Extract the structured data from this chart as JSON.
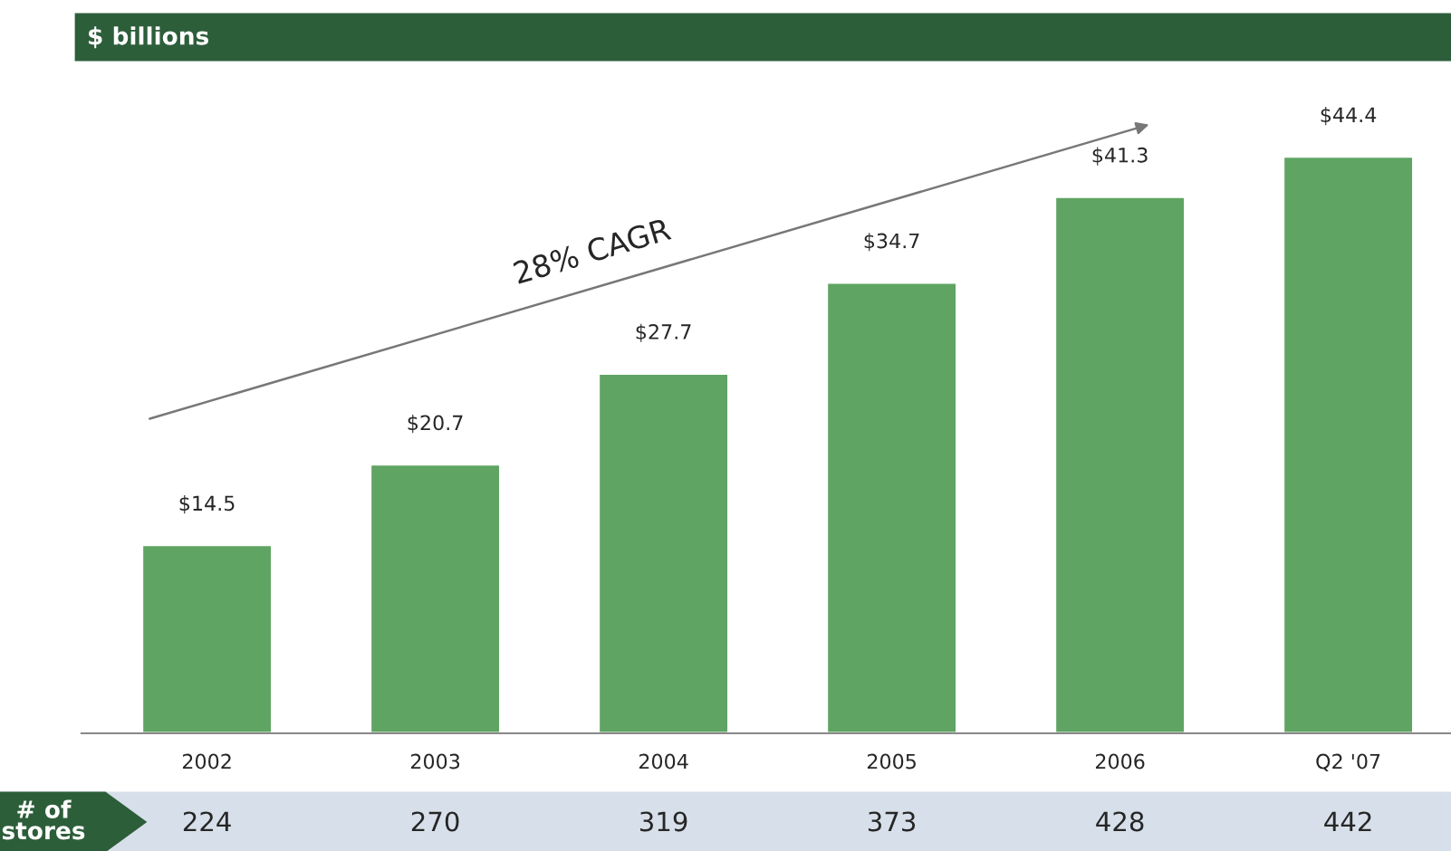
{
  "chart_data": {
    "type": "bar",
    "title": "$ billions",
    "categories": [
      "2002",
      "2003",
      "2004",
      "2005",
      "2006",
      "Q2 '07"
    ],
    "series": [
      {
        "color": "#5fa463",
        "values": [
          14.5,
          20.7,
          27.7,
          34.7,
          41.3,
          44.4
        ],
        "value_labels": [
          "$14.5",
          "$20.7",
          "$27.7",
          "$34.7",
          "$41.3",
          "$44.4"
        ]
      }
    ],
    "annotations": [
      "28% CAGR",
      "# of stores",
      "224",
      "270",
      "319",
      "373",
      "428",
      "442"
    ],
    "grid": false,
    "legend": false
  }
}
